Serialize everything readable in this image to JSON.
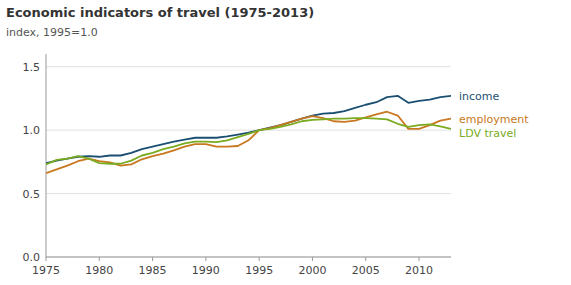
{
  "chart_data": {
    "type": "line",
    "title": "Economic indicators  of travel (1975-2013)",
    "y_label": "index, 1995=1.0",
    "x": [
      1975,
      1976,
      1977,
      1978,
      1979,
      1980,
      1981,
      1982,
      1983,
      1984,
      1985,
      1986,
      1987,
      1988,
      1989,
      1990,
      1991,
      1992,
      1993,
      1994,
      1995,
      1996,
      1997,
      1998,
      1999,
      2000,
      2001,
      2002,
      2003,
      2004,
      2005,
      2006,
      2007,
      2008,
      2009,
      2010,
      2011,
      2012,
      2013
    ],
    "series": [
      {
        "name": "income",
        "color": "#1b4f72",
        "values": [
          0.74,
          0.76,
          0.775,
          0.79,
          0.795,
          0.79,
          0.8,
          0.8,
          0.82,
          0.85,
          0.87,
          0.89,
          0.91,
          0.925,
          0.94,
          0.94,
          0.94,
          0.95,
          0.965,
          0.98,
          1.0,
          1.02,
          1.04,
          1.065,
          1.09,
          1.115,
          1.13,
          1.135,
          1.15,
          1.175,
          1.2,
          1.22,
          1.26,
          1.27,
          1.215,
          1.23,
          1.24,
          1.26,
          1.27
        ]
      },
      {
        "name": "employment",
        "color": "#c87820",
        "values": [
          0.66,
          0.69,
          0.72,
          0.755,
          0.775,
          0.755,
          0.745,
          0.72,
          0.73,
          0.77,
          0.795,
          0.815,
          0.84,
          0.87,
          0.89,
          0.89,
          0.87,
          0.87,
          0.875,
          0.92,
          1.0,
          1.015,
          1.04,
          1.065,
          1.09,
          1.11,
          1.095,
          1.07,
          1.065,
          1.075,
          1.1,
          1.125,
          1.145,
          1.115,
          1.01,
          1.01,
          1.04,
          1.075,
          1.09
        ]
      },
      {
        "name": "LDV travel",
        "color": "#7aab20",
        "values": [
          0.73,
          0.765,
          0.775,
          0.795,
          0.775,
          0.74,
          0.735,
          0.735,
          0.76,
          0.8,
          0.82,
          0.85,
          0.87,
          0.895,
          0.91,
          0.91,
          0.905,
          0.92,
          0.945,
          0.97,
          1.0,
          1.01,
          1.025,
          1.045,
          1.07,
          1.08,
          1.085,
          1.09,
          1.09,
          1.095,
          1.095,
          1.09,
          1.085,
          1.05,
          1.025,
          1.04,
          1.045,
          1.03,
          1.01
        ]
      }
    ],
    "xlim": [
      1975,
      2013
    ],
    "ylim": [
      0.0,
      1.6
    ],
    "xticks": [
      1975,
      1980,
      1985,
      1990,
      1995,
      2000,
      2005,
      2010
    ],
    "yticks": [
      {
        "value": 0.0,
        "label": "0.0"
      },
      0.5,
      {
        "value": 1.0,
        "label": "1.0"
      },
      1.5
    ],
    "grid": true
  }
}
